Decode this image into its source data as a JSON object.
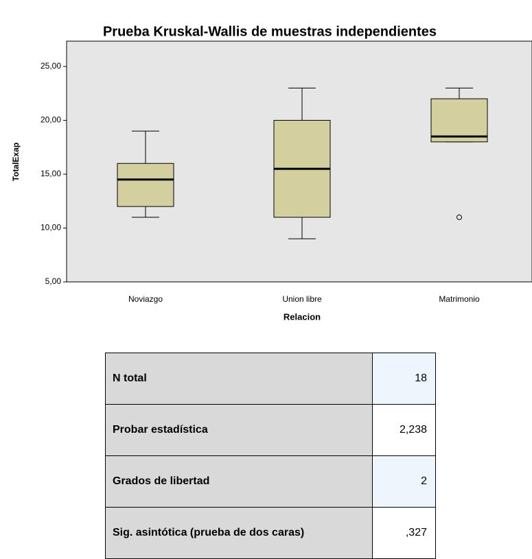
{
  "chart_data": {
    "type": "box",
    "title": "Prueba Kruskal-Wallis de muestras independientes",
    "y_label": "TotalExap",
    "x_label": "Relacion",
    "categories": [
      "Noviazgo",
      "Union libre",
      "Matrimonio"
    ],
    "boxes": [
      {
        "whisker_low": 11,
        "q1": 12,
        "median": 14.5,
        "q3": 16,
        "whisker_high": 19,
        "outliers": []
      },
      {
        "whisker_low": 9,
        "q1": 11,
        "median": 15.5,
        "q3": 20,
        "whisker_high": 23,
        "outliers": []
      },
      {
        "whisker_low": 18,
        "q1": 18,
        "median": 18.5,
        "q3": 22,
        "whisker_high": 23,
        "outliers": [
          11
        ]
      }
    ],
    "color": "#d4cf9f",
    "ylim": [
      5,
      27.35
    ],
    "yticks": [
      {
        "value": 5,
        "label": "5,00"
      },
      {
        "value": 10,
        "label": "10,00"
      },
      {
        "value": 15,
        "label": "15,00"
      },
      {
        "value": 20,
        "label": "20,00"
      },
      {
        "value": 25,
        "label": "25,00"
      }
    ]
  },
  "table": {
    "rows": [
      [
        "N total",
        "18"
      ],
      [
        "Probar estadística",
        "2,238"
      ],
      [
        "Grados de libertad",
        "2"
      ],
      [
        "Sig. asintótica (prueba de dos caras)",
        ",327"
      ]
    ]
  }
}
